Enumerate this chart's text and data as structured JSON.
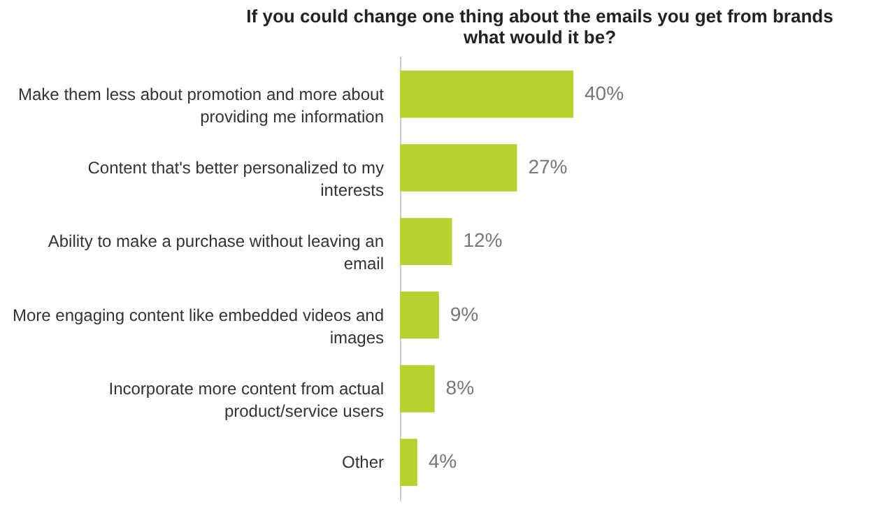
{
  "chart_data": {
    "type": "bar",
    "orientation": "horizontal",
    "title": "If you could change one thing about the emails you get from brands what would it be?",
    "categories": [
      "Make them less about promotion and more about providing me information",
      "Content that's better personalized to my interests",
      "Ability to make a purchase without leaving an email",
      "More engaging content like embedded videos and images",
      "Incorporate more content from actual product/service users",
      "Other"
    ],
    "values": [
      40,
      27,
      12,
      9,
      8,
      4
    ],
    "value_labels": [
      "40%",
      "27%",
      "12%",
      "9%",
      "8%",
      "4%"
    ],
    "color": "#b8d12e"
  }
}
